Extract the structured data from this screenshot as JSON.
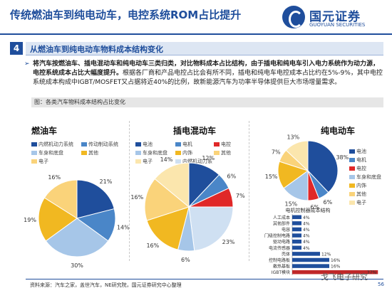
{
  "header": {
    "title": "传统燃油车到纯电动车，电控系统ROM占比提升",
    "logo_cn": "国元证券",
    "logo_en": "GUOYUAN SECURITIES"
  },
  "section": {
    "number": "4",
    "title": "从燃油车到纯电动车物料成本结构变化"
  },
  "bullet": {
    "bold_part": "将汽车按燃油车、插电混动车和纯电动车三类归类，对比物料成本占比结构，由于插电和纯电车引入电力系统作为动力源，电控系统成本占比大幅度提升。",
    "normal_part": "根据各厂商和产品电控占比会有所不同，插电和纯电车电控成本占比约在5%-9%，其中电控系统成本构成中IGBT/MOSFET又占据将近40%的比例，故新能源汽车为功率半导体提供巨大市场增量需求。"
  },
  "figure_title": "图：各类汽车物料成本结构占比变化",
  "source": "资料来源：汽车之家，盖世汽车，NE研究院，国元证券研究中心整理",
  "page_number": "56",
  "watermark": "戈飞电子研究",
  "colors": {
    "dark_blue": "#1f4e9c",
    "mid_blue": "#4a86c8",
    "light_blue": "#a6c6e8",
    "red": "#e02828",
    "gold": "#f1b821",
    "light_gold": "#fad37a",
    "pale_gold": "#fbe6ad",
    "pale_blue": "#cfe0f2",
    "bar_red": "#c0282a"
  },
  "chart_data": [
    {
      "type": "pie",
      "title": "燃油车",
      "legend": [
        "内燃机动力系统",
        "传动制动系统",
        "车身和底盘",
        "其他",
        "电子"
      ],
      "slices": [
        {
          "label": "内燃机动力系统",
          "value": 21,
          "color": "#1f4e9c"
        },
        {
          "label": "传动制动系统",
          "value": 14,
          "color": "#4a86c8"
        },
        {
          "label": "车身和底盘",
          "value": 30,
          "color": "#a6c6e8"
        },
        {
          "label": "其他",
          "value": 19,
          "color": "#f1b821"
        },
        {
          "label": "电子",
          "value": 16,
          "color": "#fad37a"
        }
      ]
    },
    {
      "type": "pie",
      "title": "插电混动车",
      "legend": [
        "电池",
        "电机",
        "电控",
        "车身和底盘",
        "内饰",
        "其他",
        "电子",
        "内燃机动力系"
      ],
      "slices": [
        {
          "label": "电池",
          "value": 12,
          "color": "#1f4e9c"
        },
        {
          "label": "电机",
          "value": 6,
          "color": "#4a86c8"
        },
        {
          "label": "电控",
          "value": 7,
          "color": "#e02828"
        },
        {
          "label": "内燃机动力系",
          "value": 23,
          "color": "#cfe0f2"
        },
        {
          "label": "车身和底盘",
          "value": 6,
          "color": "#a6c6e8"
        },
        {
          "label": "内饰",
          "value": 16,
          "color": "#f1b821"
        },
        {
          "label": "其他",
          "value": 16,
          "color": "#fad37a"
        },
        {
          "label": "电子",
          "value": 14,
          "color": "#fbe6ad"
        }
      ]
    },
    {
      "type": "pie",
      "title": "纯电动车",
      "legend": [
        "电池",
        "电机",
        "电控",
        "车身和底盘",
        "内饰",
        "其他",
        "电子"
      ],
      "slices": [
        {
          "label": "电池",
          "value": 38,
          "color": "#1f4e9c"
        },
        {
          "label": "电机",
          "value": 6,
          "color": "#4a86c8"
        },
        {
          "label": "电控",
          "value": 6,
          "color": "#e02828"
        },
        {
          "label": "车身和底盘",
          "value": 15,
          "color": "#a6c6e8"
        },
        {
          "label": "内饰",
          "value": 15,
          "color": "#f1b821"
        },
        {
          "label": "其他",
          "value": 7,
          "color": "#fad37a"
        },
        {
          "label": "电子",
          "value": 13,
          "color": "#fbe6ad"
        }
      ]
    },
    {
      "type": "bar",
      "orientation": "horizontal",
      "title": "电机控制器成本结构",
      "categories": [
        "人工成本",
        "其他部件",
        "电容",
        "门级控制电路",
        "驱动电路",
        "电流传感器",
        "壳体",
        "控制电路板",
        "散热基板",
        "IGBT模块"
      ],
      "values": [
        4,
        4,
        4,
        4,
        4,
        4,
        12,
        16,
        16,
        37
      ],
      "value_suffix": "%",
      "xlim": [
        0,
        40
      ]
    }
  ]
}
